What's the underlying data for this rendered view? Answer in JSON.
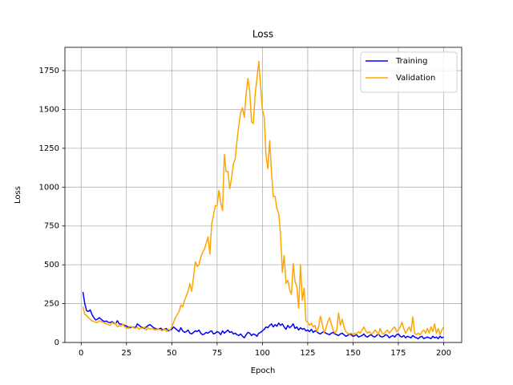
{
  "chart_data": {
    "type": "line",
    "title": "Loss",
    "x_label": "Epoch",
    "y_label": "Loss",
    "x": [
      1,
      2,
      3,
      4,
      5,
      6,
      7,
      8,
      9,
      10,
      11,
      12,
      13,
      14,
      15,
      16,
      17,
      18,
      19,
      20,
      21,
      22,
      23,
      24,
      25,
      26,
      27,
      28,
      29,
      30,
      31,
      32,
      33,
      34,
      35,
      36,
      37,
      38,
      39,
      40,
      41,
      42,
      43,
      44,
      45,
      46,
      47,
      48,
      49,
      50,
      51,
      52,
      53,
      54,
      55,
      56,
      57,
      58,
      59,
      60,
      61,
      62,
      63,
      64,
      65,
      66,
      67,
      68,
      69,
      70,
      71,
      72,
      73,
      74,
      75,
      76,
      77,
      78,
      79,
      80,
      81,
      82,
      83,
      84,
      85,
      86,
      87,
      88,
      89,
      90,
      91,
      92,
      93,
      94,
      95,
      96,
      97,
      98,
      99,
      100,
      101,
      102,
      103,
      104,
      105,
      106,
      107,
      108,
      109,
      110,
      111,
      112,
      113,
      114,
      115,
      116,
      117,
      118,
      119,
      120,
      121,
      122,
      123,
      124,
      125,
      126,
      127,
      128,
      129,
      130,
      131,
      132,
      133,
      134,
      135,
      136,
      137,
      138,
      139,
      140,
      141,
      142,
      143,
      144,
      145,
      146,
      147,
      148,
      149,
      150,
      151,
      152,
      153,
      154,
      155,
      156,
      157,
      158,
      159,
      160,
      161,
      162,
      163,
      164,
      165,
      166,
      167,
      168,
      169,
      170,
      171,
      172,
      173,
      174,
      175,
      176,
      177,
      178,
      179,
      180,
      181,
      182,
      183,
      184,
      185,
      186,
      187,
      188,
      189,
      190,
      191,
      192,
      193,
      194,
      195,
      196,
      197,
      198,
      199,
      200
    ],
    "series": [
      {
        "name": "Training",
        "color": "#0000ff",
        "values": [
          325,
          250,
          205,
          200,
          210,
          180,
          160,
          145,
          150,
          160,
          150,
          140,
          135,
          138,
          130,
          128,
          135,
          125,
          120,
          140,
          120,
          118,
          115,
          110,
          105,
          100,
          95,
          100,
          98,
          95,
          120,
          110,
          100,
          95,
          90,
          100,
          110,
          115,
          105,
          95,
          90,
          85,
          88,
          92,
          80,
          85,
          90,
          75,
          80,
          85,
          100,
          90,
          80,
          70,
          95,
          75,
          65,
          70,
          80,
          60,
          55,
          65,
          75,
          70,
          80,
          60,
          50,
          55,
          65,
          60,
          70,
          75,
          55,
          60,
          70,
          65,
          50,
          75,
          60,
          70,
          80,
          65,
          70,
          55,
          60,
          50,
          45,
          55,
          40,
          30,
          50,
          65,
          60,
          45,
          55,
          50,
          40,
          60,
          65,
          75,
          85,
          100,
          95,
          110,
          120,
          100,
          115,
          105,
          125,
          110,
          120,
          100,
          85,
          110,
          95,
          105,
          120,
          90,
          100,
          80,
          95,
          85,
          90,
          75,
          80,
          70,
          85,
          65,
          75,
          70,
          60,
          55,
          65,
          70,
          60,
          55,
          50,
          60,
          65,
          55,
          50,
          45,
          55,
          60,
          50,
          40,
          45,
          55,
          50,
          40,
          45,
          50,
          35,
          40,
          45,
          55,
          40,
          35,
          45,
          50,
          40,
          35,
          45,
          55,
          40,
          35,
          40,
          50,
          45,
          30,
          40,
          45,
          35,
          50,
          55,
          40,
          35,
          45,
          30,
          40,
          35,
          30,
          45,
          35,
          30,
          25,
          35,
          40,
          25,
          30,
          35,
          30,
          25,
          40,
          30,
          35,
          25,
          40,
          30,
          35
        ]
      },
      {
        "name": "Validation",
        "color": "#ffa500",
        "values": [
          230,
          180,
          175,
          160,
          150,
          140,
          135,
          130,
          128,
          140,
          135,
          130,
          125,
          120,
          115,
          110,
          130,
          120,
          125,
          100,
          110,
          105,
          120,
          100,
          95,
          90,
          105,
          100,
          95,
          90,
          100,
          85,
          95,
          90,
          100,
          80,
          95,
          85,
          90,
          85,
          80,
          90,
          85,
          80,
          75,
          90,
          70,
          85,
          80,
          100,
          130,
          160,
          180,
          200,
          240,
          230,
          270,
          300,
          330,
          380,
          330,
          420,
          520,
          490,
          500,
          550,
          580,
          600,
          640,
          680,
          570,
          760,
          820,
          880,
          880,
          980,
          900,
          850,
          1210,
          1100,
          1100,
          990,
          1060,
          1150,
          1180,
          1300,
          1400,
          1480,
          1510,
          1450,
          1600,
          1700,
          1620,
          1420,
          1410,
          1600,
          1700,
          1810,
          1650,
          1500,
          1450,
          1200,
          1120,
          1300,
          1100,
          940,
          940,
          860,
          830,
          700,
          450,
          560,
          380,
          400,
          340,
          310,
          510,
          390,
          360,
          220,
          500,
          270,
          350,
          140,
          130,
          110,
          125,
          100,
          110,
          70,
          100,
          170,
          120,
          60,
          90,
          130,
          160,
          120,
          80,
          60,
          80,
          190,
          110,
          150,
          100,
          70,
          60,
          55,
          60,
          50,
          60,
          55,
          70,
          60,
          80,
          100,
          75,
          60,
          70,
          55,
          60,
          80,
          70,
          50,
          90,
          60,
          55,
          70,
          80,
          60,
          75,
          90,
          100,
          70,
          80,
          100,
          130,
          90,
          60,
          80,
          100,
          70,
          165,
          60,
          50,
          60,
          50,
          70,
          80,
          60,
          90,
          60,
          100,
          70,
          120,
          60,
          90,
          50,
          80,
          100
        ]
      }
    ],
    "xlim": [
      -8.95,
      209.95
    ],
    "xticks": [
      0,
      25,
      50,
      75,
      100,
      125,
      150,
      175,
      200
    ],
    "ylim": [
      0,
      1900
    ],
    "yticks": [
      0,
      250,
      500,
      750,
      1000,
      1250,
      1500,
      1750
    ],
    "grid": true,
    "legend": "upper right"
  }
}
